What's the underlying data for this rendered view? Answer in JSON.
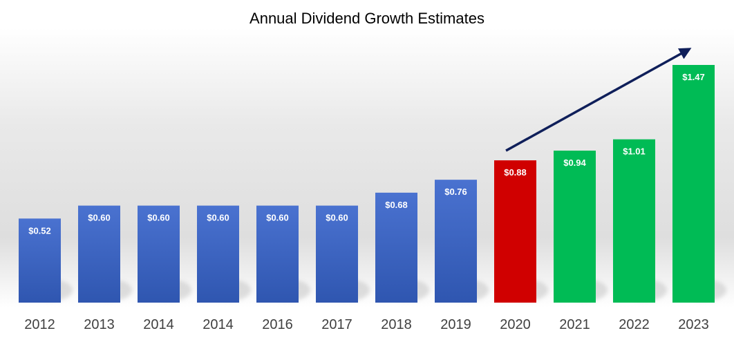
{
  "colors": {
    "blue_top": "#4a72d0",
    "blue_bottom": "#2f56b0",
    "red": "#d00000",
    "green": "#00bb55",
    "arrow": "#0f1f5a"
  },
  "chart_data": {
    "type": "bar",
    "title": "Annual Dividend Growth Estimates",
    "xlabel": "",
    "ylabel": "",
    "ylim": [
      0,
      1.55
    ],
    "grid": false,
    "legend": "none",
    "categories": [
      "2012",
      "2013",
      "2014",
      "2014",
      "2016",
      "2017",
      "2018",
      "2019",
      "2020",
      "2021",
      "2022",
      "2023"
    ],
    "values": [
      0.52,
      0.6,
      0.6,
      0.6,
      0.6,
      0.6,
      0.68,
      0.76,
      0.88,
      0.94,
      1.01,
      1.47
    ],
    "value_labels": [
      "$0.52",
      "$0.60",
      "$0.60",
      "$0.60",
      "$0.60",
      "$0.60",
      "$0.68",
      "$0.76",
      "$0.88",
      "$0.94",
      "$1.01",
      "$1.47"
    ],
    "bar_color_keys": [
      "blue",
      "blue",
      "blue",
      "blue",
      "blue",
      "blue",
      "blue",
      "blue",
      "red",
      "green",
      "green",
      "green"
    ],
    "annotation": {
      "type": "trend-arrow",
      "from_category_index": 8,
      "to_category_index": 11
    }
  }
}
